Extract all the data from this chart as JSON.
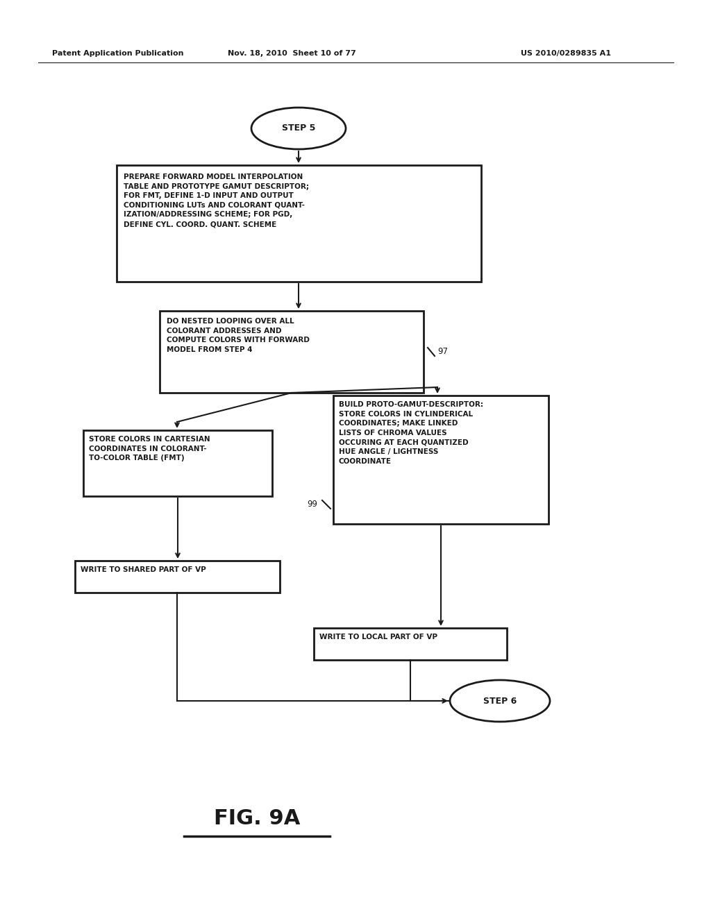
{
  "bg_color": "#ffffff",
  "header_text_left": "Patent Application Publication",
  "header_text_mid": "Nov. 18, 2010  Sheet 10 of 77",
  "header_text_right": "US 2010/0289835 A1",
  "figure_label": "FIG. 9A",
  "step5_label": "STEP 5",
  "step6_label": "STEP 6",
  "box1_text": "PREPARE FORWARD MODEL INTERPOLATION\nTABLE AND PROTOTYPE GAMUT DESCRIPTOR;\nFOR FMT, DEFINE 1-D INPUT AND OUTPUT\nCONDITIONING LUTs AND COLORANT QUANT-\nIZATION/ADDRESSING SCHEME; FOR PGD,\nDEFINE CYL. COORD. QUANT. SCHEME",
  "box2_text": "DO NESTED LOOPING OVER ALL\nCOLORANT ADDRESSES AND\nCOMPUTE COLORS WITH FORWARD\nMODEL FROM STEP 4",
  "box2_label": "97",
  "box3_text": "STORE COLORS IN CARTESIAN\nCOORDINATES IN COLORANT-\nTO-COLOR TABLE (FMT)",
  "box4_text": "BUILD PROTO-GAMUT-DESCRIPTOR:\nSTORE COLORS IN CYLINDERICAL\nCOORDINATES; MAKE LINKED\nLISTS OF CHROMA VALUES\nOCCURING AT EACH QUANTIZED\nHUE ANGLE / LIGHTNESS\nCOORDINATE",
  "box4_label": "99",
  "box5_text": "WRITE TO SHARED PART OF VP",
  "box6_text": "WRITE TO LOCAL PART OF VP",
  "text_color": "#1a1a1a",
  "line_color": "#1a1a1a",
  "font_size_header": 8.0,
  "font_size_body": 7.5,
  "font_size_fig": 22
}
